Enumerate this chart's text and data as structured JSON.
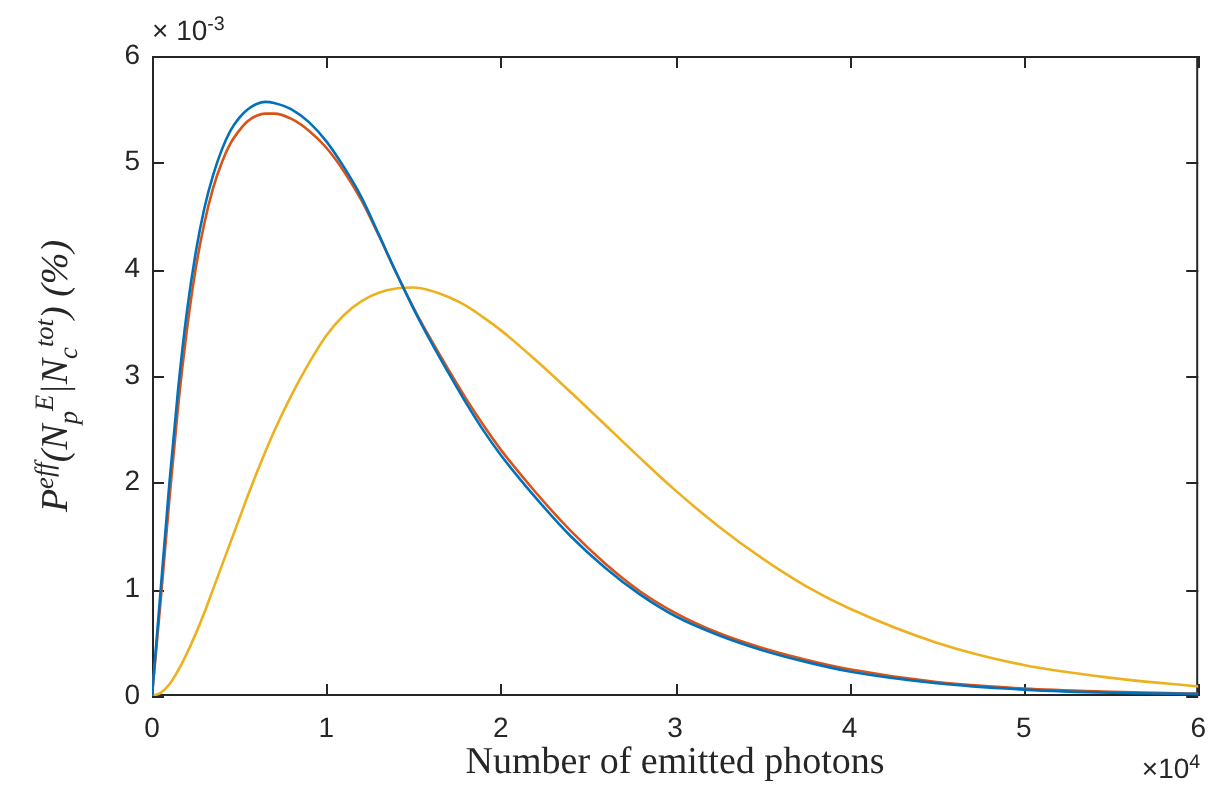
{
  "chart_data": {
    "type": "line",
    "xlabel": "Number of emitted photons",
    "ylabel": "P$^{eff}$(N$_{p}$$^{E}$|N$_{c}$$^{tot}$) (%)",
    "annotations": [
      "× 10$^{-3}$",
      "×10$^{4}$"
    ],
    "xlim": [
      0,
      6
    ],
    "ylim": [
      0,
      6
    ],
    "xticks": [
      0,
      1,
      2,
      3,
      4,
      5,
      6
    ],
    "yticks": [
      0,
      1,
      2,
      3,
      4,
      5,
      6
    ],
    "x": [
      0,
      0.05,
      0.1,
      0.15,
      0.2,
      0.25,
      0.3,
      0.35,
      0.4,
      0.45,
      0.5,
      0.55,
      0.6,
      0.65,
      0.7,
      0.8,
      0.9,
      1,
      1.1,
      1.2,
      1.3,
      1.4,
      1.5,
      1.6,
      1.7,
      1.8,
      1.9,
      2,
      2.2,
      2.4,
      2.6,
      2.8,
      3,
      3.25,
      3.5,
      3.75,
      4,
      4.5,
      5,
      5.5,
      6
    ],
    "series": [
      {
        "color": "#0072bd",
        "values": [
          0,
          1.0,
          2.0,
          2.88,
          3.6,
          4.15,
          4.57,
          4.88,
          5.12,
          5.3,
          5.42,
          5.5,
          5.55,
          5.57,
          5.56,
          5.5,
          5.38,
          5.2,
          4.96,
          4.68,
          4.33,
          3.97,
          3.63,
          3.32,
          3.03,
          2.75,
          2.49,
          2.26,
          1.86,
          1.5,
          1.2,
          0.95,
          0.75,
          0.57,
          0.43,
          0.32,
          0.23,
          0.12,
          0.06,
          0.03,
          0.02
        ]
      },
      {
        "color": "#d95319",
        "values": [
          0,
          0.9,
          1.85,
          2.72,
          3.43,
          4.0,
          4.43,
          4.76,
          5.0,
          5.18,
          5.3,
          5.39,
          5.44,
          5.46,
          5.46,
          5.41,
          5.3,
          5.14,
          4.92,
          4.65,
          4.32,
          3.97,
          3.64,
          3.34,
          3.06,
          2.79,
          2.54,
          2.31,
          1.91,
          1.55,
          1.24,
          0.98,
          0.78,
          0.59,
          0.45,
          0.34,
          0.25,
          0.13,
          0.07,
          0.04,
          0.02
        ]
      },
      {
        "color": "#edb120",
        "values": [
          0,
          0.03,
          0.11,
          0.24,
          0.4,
          0.58,
          0.78,
          1.0,
          1.22,
          1.44,
          1.66,
          1.88,
          2.09,
          2.29,
          2.48,
          2.82,
          3.12,
          3.38,
          3.57,
          3.7,
          3.78,
          3.82,
          3.83,
          3.8,
          3.74,
          3.66,
          3.55,
          3.43,
          3.15,
          2.85,
          2.54,
          2.23,
          1.93,
          1.59,
          1.29,
          1.03,
          0.82,
          0.5,
          0.29,
          0.17,
          0.09
        ]
      }
    ]
  }
}
